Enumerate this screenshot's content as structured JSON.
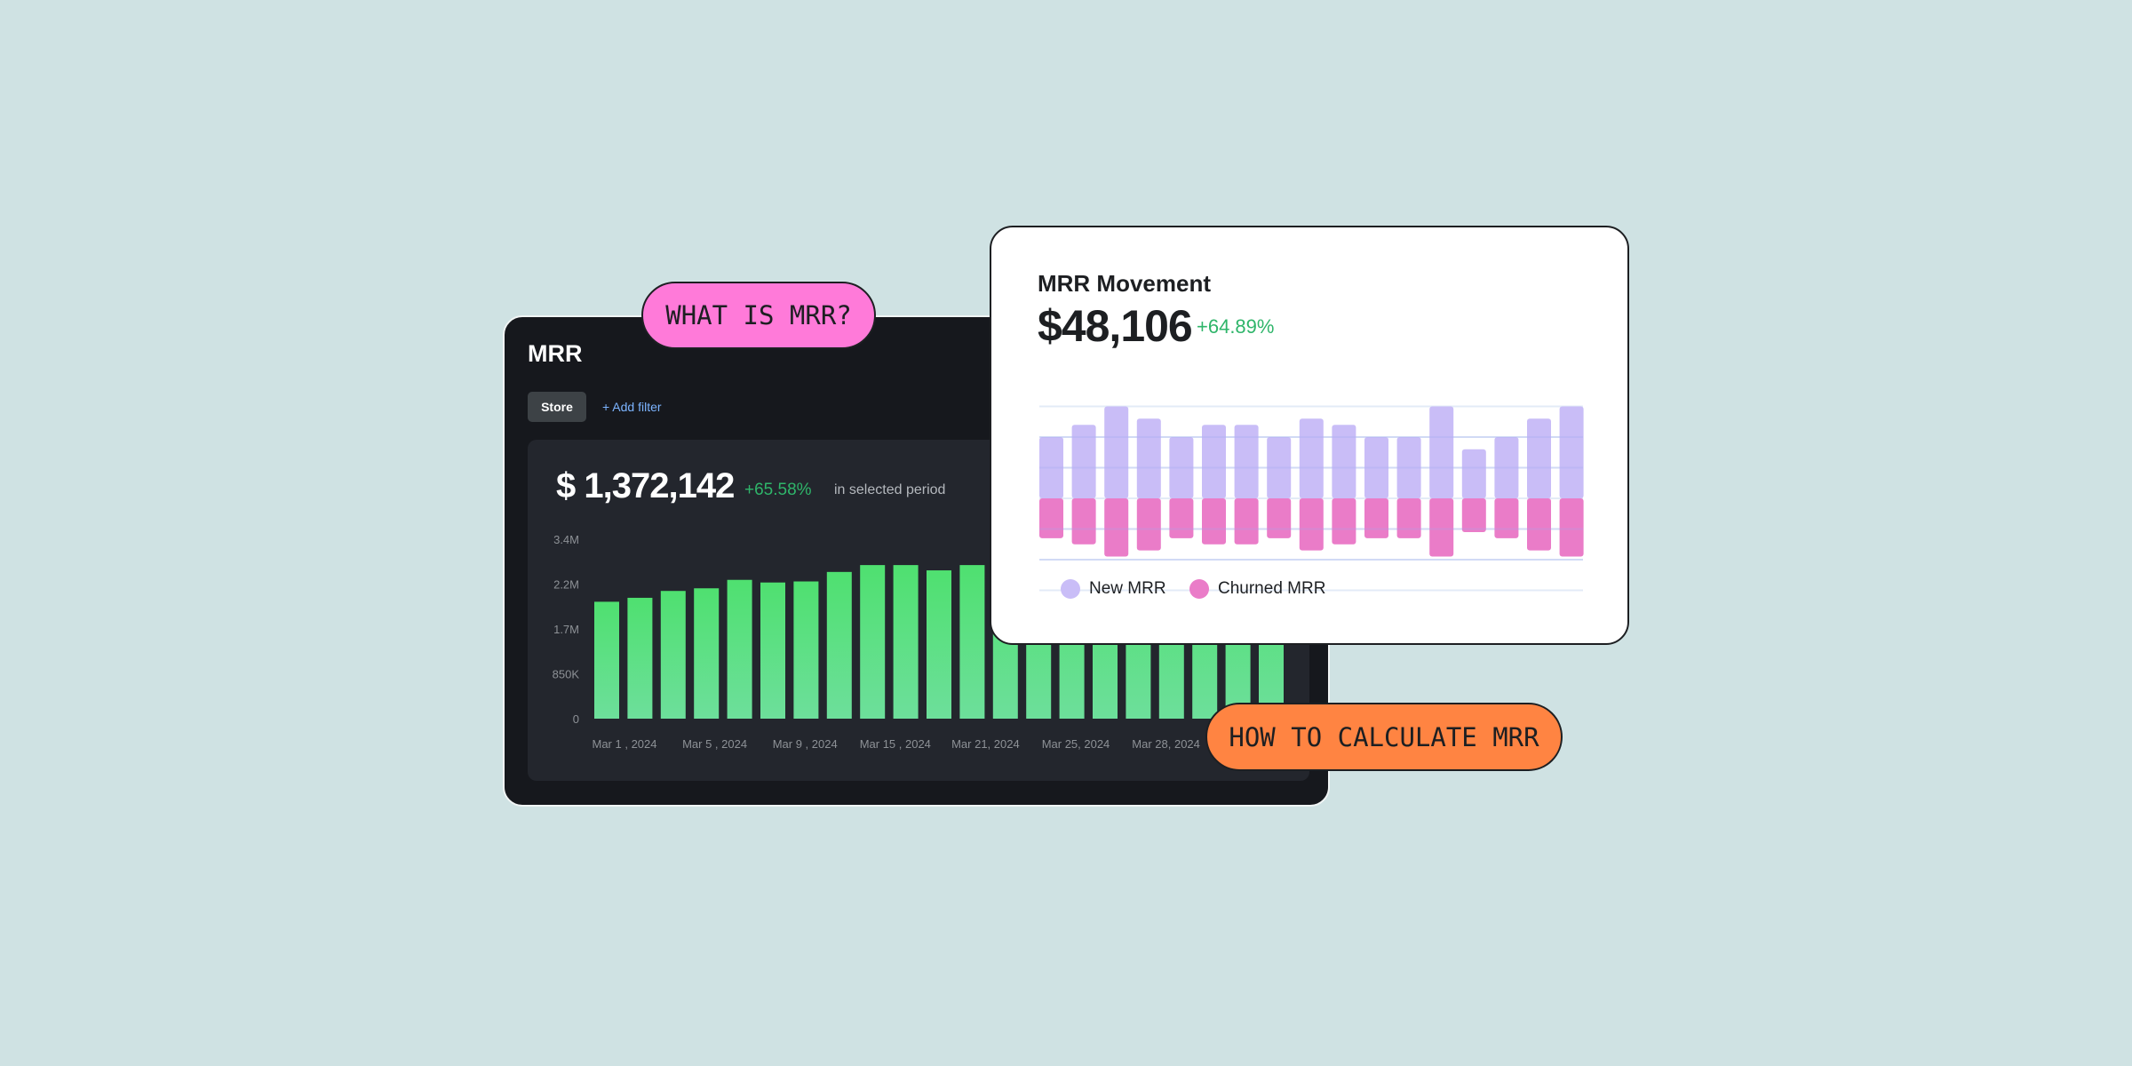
{
  "colors": {
    "background": "#cfe2e3",
    "accent_green": "#4fe070",
    "positive": "#2fb56a",
    "new_mrr": "#c9bdf7",
    "churned_mrr": "#ea7cc8",
    "pill_pink": "#ff7ad9",
    "pill_orange": "#ff8442"
  },
  "pills": {
    "what_is": "WHAT IS MRR?",
    "how_to": "HOW TO CALCULATE MRR"
  },
  "mrr_card": {
    "title": "MRR",
    "filter_button": "Store",
    "add_filter": "+ Add filter",
    "total": "$ 1,372,142",
    "change": "+65.58%",
    "period_label": "in selected period"
  },
  "movement_card": {
    "title": "MRR Movement",
    "total": "$48,106",
    "change": "+64.89%"
  },
  "chart_data": [
    {
      "type": "bar",
      "title": "MRR",
      "y_tick_labels": [
        "0",
        "850K",
        "1.7M",
        "2.2M",
        "3.4M"
      ],
      "ylim": [
        0,
        3400000
      ],
      "x_tick_labels": [
        "Mar 1 , 2024",
        "Mar 5 , 2024",
        "Mar 9 , 2024",
        "Mar 15 , 2024",
        "Mar 21, 2024",
        "Mar 25, 2024",
        "Mar 28, 2024"
      ],
      "values": [
        2215000,
        2290000,
        2420000,
        2470000,
        2630000,
        2580000,
        2600000,
        2780000,
        2910000,
        2910000,
        2810000,
        2910000,
        2930000,
        2950000,
        2960000,
        2980000,
        3000000,
        3010000,
        3020000,
        3040000,
        3060000
      ],
      "color": "#4fe070",
      "grid": false
    },
    {
      "type": "bar",
      "title": "MRR Movement",
      "stacked": "diverging",
      "ylim": [
        -3,
        3
      ],
      "grid": true,
      "legend": "bottom-left",
      "series": [
        {
          "name": "New MRR",
          "color": "#c9bdf7",
          "values": [
            2.0,
            2.4,
            3.0,
            2.6,
            2.0,
            2.4,
            2.4,
            2.0,
            2.6,
            2.4,
            2.0,
            2.0,
            3.0,
            1.6,
            2.0,
            2.6,
            3.0
          ]
        },
        {
          "name": "Churned MRR",
          "color": "#ea7cc8",
          "values": [
            -1.3,
            -1.5,
            -1.9,
            -1.7,
            -1.3,
            -1.5,
            -1.5,
            -1.3,
            -1.7,
            -1.5,
            -1.3,
            -1.3,
            -1.9,
            -1.1,
            -1.3,
            -1.7,
            -1.9
          ]
        }
      ]
    }
  ]
}
